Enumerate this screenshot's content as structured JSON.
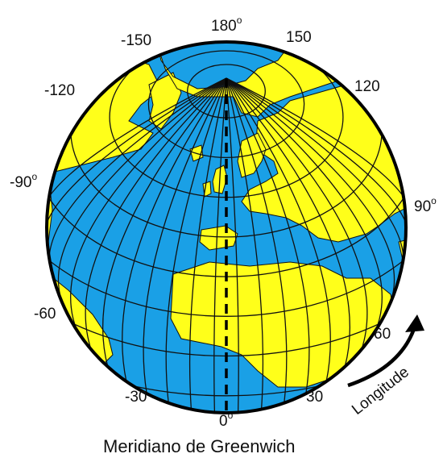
{
  "colors": {
    "ocean": "#1aa0e6",
    "land": "#ffff1a",
    "grid": "#111111",
    "outline": "#000000"
  },
  "longitude_labels": {
    "top_center": "180",
    "top_left": "-150",
    "top_right": "150",
    "upper_left": "-120",
    "upper_right": "120",
    "mid_left": "-90",
    "mid_right": "90",
    "lower_left": "-60",
    "lower_right": "60",
    "bottom_left": "-30",
    "bottom_right": "30",
    "bottom_center": "0",
    "degree_symbol": "o"
  },
  "arrow_label": "Longitude",
  "caption": "Meridiano de Greenwich"
}
